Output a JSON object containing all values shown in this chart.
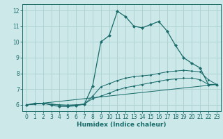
{
  "title": "",
  "xlabel": "Humidex (Indice chaleur)",
  "bg_color": "#cce8e8",
  "grid_color": "#aacfcf",
  "line_color": "#1a6b6b",
  "xlim": [
    -0.5,
    23.5
  ],
  "ylim": [
    5.6,
    12.4
  ],
  "xticks": [
    0,
    1,
    2,
    3,
    4,
    5,
    6,
    7,
    8,
    9,
    10,
    11,
    12,
    13,
    14,
    15,
    16,
    17,
    18,
    19,
    20,
    21,
    22,
    23
  ],
  "yticks": [
    6,
    7,
    8,
    9,
    10,
    11,
    12
  ],
  "line1_x": [
    0,
    1,
    2,
    3,
    4,
    5,
    6,
    7,
    8,
    9,
    10,
    11,
    12,
    13,
    14,
    15,
    16,
    17,
    18,
    19,
    20,
    21,
    22,
    23
  ],
  "line1_y": [
    6.0,
    6.1,
    6.1,
    6.0,
    5.9,
    5.9,
    5.95,
    6.05,
    7.2,
    10.0,
    10.4,
    11.95,
    11.6,
    11.0,
    10.9,
    11.1,
    11.3,
    10.7,
    9.8,
    9.0,
    8.65,
    8.35,
    7.3,
    7.3
  ],
  "line2_x": [
    0,
    2,
    3,
    4,
    5,
    6,
    7,
    8,
    9,
    10,
    11,
    12,
    13,
    14,
    15,
    16,
    17,
    18,
    19,
    20,
    21,
    22,
    23
  ],
  "line2_y": [
    6.0,
    6.1,
    6.05,
    6.0,
    5.98,
    6.0,
    6.05,
    6.4,
    6.55,
    6.75,
    6.95,
    7.1,
    7.2,
    7.3,
    7.4,
    7.5,
    7.6,
    7.65,
    7.7,
    7.7,
    7.6,
    7.3,
    7.3
  ],
  "line3_x": [
    0,
    2,
    3,
    4,
    5,
    6,
    7,
    8,
    9,
    10,
    11,
    12,
    13,
    14,
    15,
    16,
    17,
    18,
    19,
    20,
    21,
    22,
    23
  ],
  "line3_y": [
    6.0,
    6.1,
    6.05,
    6.0,
    5.98,
    6.0,
    6.05,
    6.55,
    7.15,
    7.35,
    7.55,
    7.7,
    7.8,
    7.85,
    7.9,
    8.0,
    8.1,
    8.15,
    8.2,
    8.15,
    8.1,
    7.6,
    7.3
  ],
  "line4_x": [
    0,
    23
  ],
  "line4_y": [
    6.0,
    7.3
  ]
}
